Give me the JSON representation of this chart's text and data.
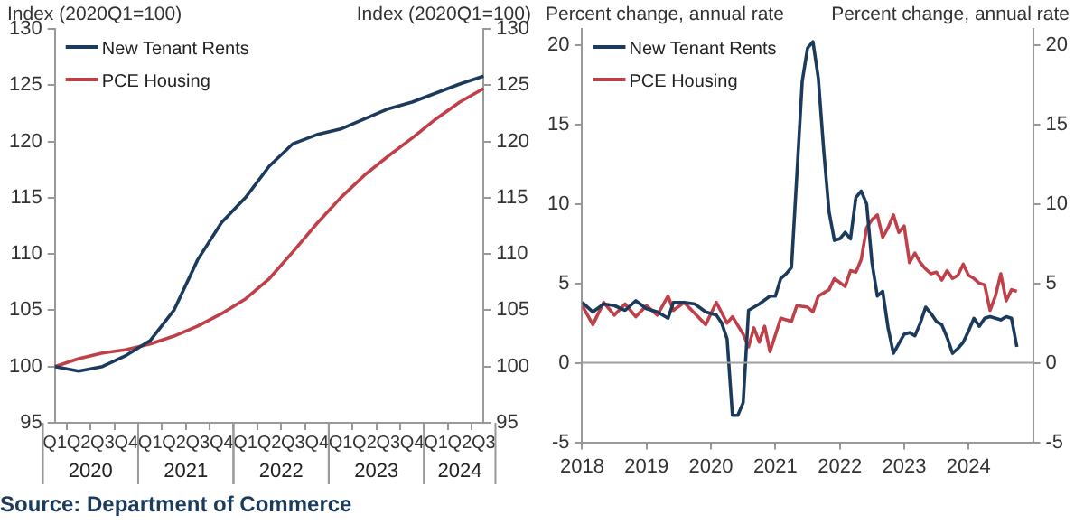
{
  "chart_data": [
    {
      "type": "line",
      "ylabel": "Index (2020Q1=100)",
      "y2label": "Index (2020Q1=100)",
      "categories": [
        "Q1",
        "Q2",
        "Q3",
        "Q4",
        "Q1",
        "Q2",
        "Q3",
        "Q4",
        "Q1",
        "Q2",
        "Q3",
        "Q4",
        "Q1",
        "Q2",
        "Q3",
        "Q4",
        "Q1",
        "Q2",
        "Q3"
      ],
      "annotations": [
        "2020",
        "2021",
        "2022",
        "2023",
        "2024"
      ],
      "series": [
        {
          "name": "New Tenant Rents",
          "color": "#1b3a5c",
          "values": [
            100,
            99.6,
            100,
            101,
            102.3,
            105,
            109.5,
            112.8,
            115,
            117.8,
            119.8,
            120.6,
            121.1,
            122,
            122.9,
            123.5,
            124.3,
            125.1,
            125.8
          ]
        },
        {
          "name": "PCE Housing",
          "color": "#c0404a",
          "values": [
            100,
            100.7,
            101.2,
            101.5,
            102,
            102.7,
            103.6,
            104.7,
            106,
            107.8,
            110.2,
            112.7,
            115,
            117,
            118.7,
            120.3,
            122,
            123.5,
            124.7
          ]
        }
      ],
      "ylim": [
        95,
        130
      ],
      "yticks": [
        95,
        100,
        105,
        110,
        115,
        120,
        125,
        130
      ],
      "y2lim": [
        95,
        130
      ],
      "y2ticks": [
        95,
        100,
        105,
        110,
        115,
        120,
        125,
        130
      ],
      "grid": false,
      "legend": "top left",
      "marker": "none",
      "line_style": "solid"
    },
    {
      "type": "line",
      "ylabel": "Percent change, annual rate",
      "y2label": "Percent change, annual rate",
      "annotations": [
        "Source: Department of Commerce"
      ],
      "series": [
        {
          "name": "New Tenant Rents",
          "color": "#1b3a5c",
          "x": [
            "2018-01",
            "2018-03",
            "2018-05",
            "2018-07",
            "2018-09",
            "2018-11",
            "2019-01",
            "2019-03",
            "2019-05",
            "2019-06",
            "2019-08",
            "2019-10",
            "2019-12",
            "2020-02",
            "2020-03",
            "2020-04",
            "2020-05",
            "2020-06",
            "2020-07",
            "2020-08",
            "2020-10",
            "2020-12",
            "2021-01",
            "2021-02",
            "2021-03",
            "2021-04",
            "2021-05",
            "2021-06",
            "2021-07",
            "2021-08",
            "2021-09",
            "2021-10",
            "2021-11",
            "2021-12",
            "2022-01",
            "2022-02",
            "2022-03",
            "2022-04",
            "2022-05",
            "2022-06",
            "2022-07",
            "2022-08",
            "2022-09",
            "2022-10",
            "2022-11",
            "2022-12",
            "2023-01",
            "2023-02",
            "2023-03",
            "2023-04",
            "2023-05",
            "2023-06",
            "2023-07",
            "2023-08",
            "2023-09",
            "2023-10",
            "2023-11",
            "2023-12",
            "2024-01",
            "2024-02",
            "2024-03",
            "2024-04",
            "2024-05",
            "2024-06",
            "2024-07",
            "2024-08",
            "2024-09",
            "2024-10"
          ],
          "values": [
            3.8,
            3.2,
            3.7,
            3.6,
            3.3,
            3.9,
            3.4,
            3.2,
            2.8,
            3.8,
            3.8,
            3.7,
            3.2,
            3.0,
            2.5,
            1.5,
            -3.3,
            -3.3,
            -2.5,
            3.3,
            3.7,
            4.2,
            4.2,
            5.3,
            5.6,
            6,
            11.8,
            17.7,
            19.8,
            20.2,
            17.9,
            13.4,
            9.5,
            7.7,
            7.8,
            8.2,
            7.8,
            10.4,
            10.8,
            10,
            6.3,
            4.2,
            4.5,
            2.2,
            0.6,
            1.2,
            1.8,
            1.9,
            1.7,
            2.5,
            3.5,
            3.1,
            2.6,
            2.4,
            1.6,
            0.6,
            0.9,
            1.3,
            2,
            2.8,
            2.3,
            2.8,
            2.9,
            2.8,
            2.7,
            2.9,
            2.8,
            1
          ]
        },
        {
          "name": "PCE Housing",
          "color": "#c0404a",
          "x": [
            "2018-01",
            "2018-03",
            "2018-05",
            "2018-07",
            "2018-09",
            "2018-11",
            "2019-01",
            "2019-03",
            "2019-05",
            "2019-06",
            "2019-08",
            "2019-10",
            "2019-12",
            "2020-02",
            "2020-04",
            "2020-05",
            "2020-07",
            "2020-08",
            "2020-09",
            "2020-10",
            "2020-11",
            "2020-12",
            "2021-02",
            "2021-04",
            "2021-05",
            "2021-07",
            "2021-08",
            "2021-09",
            "2021-11",
            "2021-12",
            "2022-02",
            "2022-03",
            "2022-04",
            "2022-05",
            "2022-06",
            "2022-07",
            "2022-08",
            "2022-09",
            "2022-10",
            "2022-11",
            "2022-12",
            "2023-01",
            "2023-02",
            "2023-03",
            "2023-04",
            "2023-05",
            "2023-06",
            "2023-07",
            "2023-08",
            "2023-09",
            "2023-10",
            "2023-11",
            "2023-12",
            "2024-01",
            "2024-02",
            "2024-03",
            "2024-04",
            "2024-05",
            "2024-06",
            "2024-07",
            "2024-08",
            "2024-09",
            "2024-10"
          ],
          "values": [
            3.6,
            2.4,
            3.8,
            3.0,
            3.7,
            2.9,
            3.6,
            3.0,
            4.2,
            3.3,
            3.8,
            3.1,
            2.4,
            3.8,
            2.5,
            2.9,
            1.8,
            1.0,
            2.2,
            1.3,
            2.3,
            0.7,
            2.8,
            2.6,
            3.6,
            3.5,
            3.2,
            4.2,
            4.6,
            5.3,
            4.8,
            5.8,
            5.7,
            6.5,
            8.5,
            9.0,
            9.3,
            7.9,
            8.5,
            9.3,
            8.2,
            8.6,
            6.3,
            6.9,
            6.3,
            5.9,
            5.6,
            5.7,
            5.2,
            5.8,
            5.3,
            5.5,
            6.2,
            5.5,
            5.3,
            5.0,
            4.9,
            3.3,
            4.2,
            5.6,
            3.9,
            4.6,
            4.5
          ]
        }
      ],
      "xlim": [
        "2018",
        "2025"
      ],
      "xticks": [
        "2018",
        "2019",
        "2020",
        "2021",
        "2022",
        "2023",
        "2024"
      ],
      "ylim": [
        -5,
        21
      ],
      "yticks": [
        -5,
        0,
        5,
        10,
        15,
        20
      ],
      "y2lim": [
        -5,
        21
      ],
      "y2ticks": [
        -5,
        0,
        5,
        10,
        15,
        20
      ],
      "ref_lines": [
        {
          "axis": "y",
          "value": 0,
          "color": "#a0a0a0"
        }
      ],
      "grid": false,
      "legend": "top left",
      "marker": "none",
      "line_style": "solid"
    }
  ]
}
